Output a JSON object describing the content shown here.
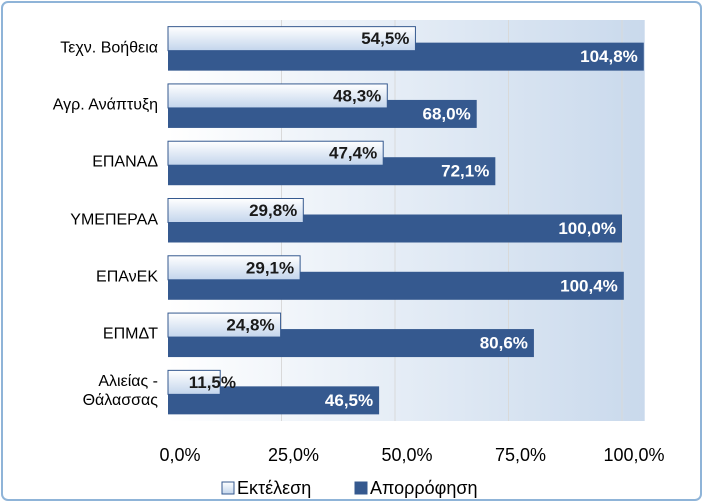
{
  "chart_data": {
    "type": "bar",
    "orientation": "horizontal",
    "categories": [
      "Τεχν. Βοήθεια",
      "Αγρ. Ανάπτυξη",
      "ΕΠΑΝΑΔ",
      "ΥΜΕΠΕΡΑΑ",
      "ΕΠΑνΕΚ",
      "ΕΠΜΔΤ",
      "Αλιείας -\nΘάλασσας"
    ],
    "series": [
      {
        "name": "Εκτέλεση",
        "color": "#dbe7f5",
        "values": [
          54.5,
          48.3,
          47.4,
          29.8,
          29.1,
          24.8,
          11.5
        ],
        "value_labels": [
          "54,5%",
          "48,3%",
          "47,4%",
          "29,8%",
          "29,1%",
          "24,8%",
          "11,5%"
        ]
      },
      {
        "name": "Απορρόφηση",
        "color": "#35598f",
        "values": [
          104.8,
          68.0,
          72.1,
          100.0,
          100.4,
          80.6,
          46.5
        ],
        "value_labels": [
          "104,8%",
          "68,0%",
          "72,1%",
          "100,0%",
          "100,4%",
          "80,6%",
          "46,5%"
        ]
      }
    ],
    "xlim": [
      0,
      105
    ],
    "xticks": [
      {
        "value": 0,
        "label": "0,0%"
      },
      {
        "value": 25,
        "label": "25,0%"
      },
      {
        "value": 50,
        "label": "50,0%"
      },
      {
        "value": 75,
        "label": "75,0%"
      },
      {
        "value": 100,
        "label": "100,0%"
      }
    ],
    "grid": true,
    "legend": "bottom"
  }
}
